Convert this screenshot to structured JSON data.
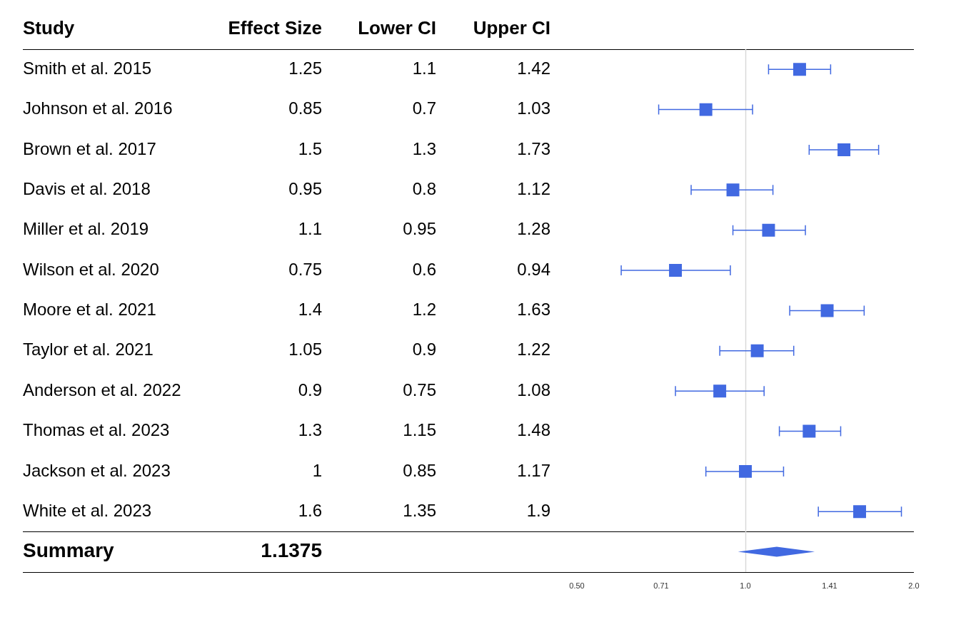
{
  "chart_data": {
    "type": "forest",
    "columns": [
      "Study",
      "Effect Size",
      "Lower CI",
      "Upper CI"
    ],
    "categories": [
      "Smith et al. 2015",
      "Johnson et al. 2016",
      "Brown et al. 2017",
      "Davis et al. 2018",
      "Miller et al. 2019",
      "Wilson et al. 2020",
      "Moore et al. 2021",
      "Taylor et al. 2021",
      "Anderson et al. 2022",
      "Thomas et al. 2023",
      "Jackson et al. 2023",
      "White et al. 2023"
    ],
    "values": [
      1.25,
      0.85,
      1.5,
      0.95,
      1.1,
      0.75,
      1.4,
      1.05,
      0.9,
      1.3,
      1,
      1.6
    ],
    "ci_lower": [
      1.1,
      0.7,
      1.3,
      0.8,
      0.95,
      0.6,
      1.2,
      0.9,
      0.75,
      1.15,
      0.85,
      1.35
    ],
    "ci_upper": [
      1.42,
      1.03,
      1.73,
      1.12,
      1.28,
      0.94,
      1.63,
      1.22,
      1.08,
      1.48,
      1.17,
      1.9
    ],
    "summary": {
      "label": "Summary",
      "value": 1.1375,
      "ci_lower": 0.97,
      "ci_upper": 1.33
    },
    "reference_line": 1,
    "log": "x",
    "xlim": [
      0.5,
      2
    ],
    "xticks": [
      {
        "value": 0.5,
        "label": "0.50"
      },
      {
        "value": 0.7071,
        "label": "0.71"
      },
      {
        "value": 1,
        "label": "1.0"
      },
      {
        "value": 1.4142,
        "label": "1.41"
      },
      {
        "value": 2,
        "label": "2.0"
      }
    ],
    "grid": false,
    "color": "#4169e1",
    "marker": "square"
  }
}
